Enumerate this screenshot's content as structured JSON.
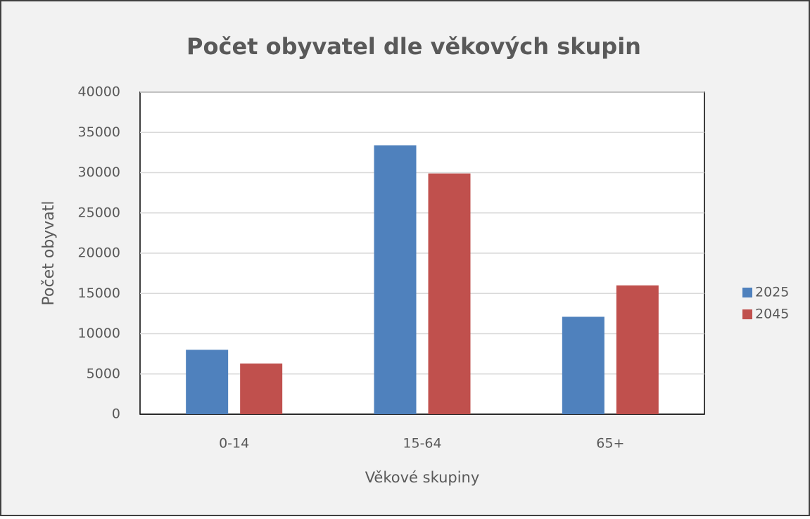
{
  "chart_data": {
    "type": "bar",
    "title": "Počet obyvatel dle věkových skupin",
    "x_label": "Věkové skupiny",
    "y_label": "Počet obyvatl",
    "categories": [
      "0-14",
      "15-64",
      "65+"
    ],
    "series": [
      {
        "name": "2025",
        "color": "#4f81bd",
        "values": [
          8000,
          33400,
          12100
        ]
      },
      {
        "name": "2045",
        "color": "#c0504d",
        "values": [
          6300,
          29900,
          16000
        ]
      }
    ],
    "ylim": [
      0,
      40000
    ],
    "yticks": [
      0,
      5000,
      10000,
      15000,
      20000,
      25000,
      30000,
      35000,
      40000
    ],
    "grid": true,
    "legend": "right"
  }
}
